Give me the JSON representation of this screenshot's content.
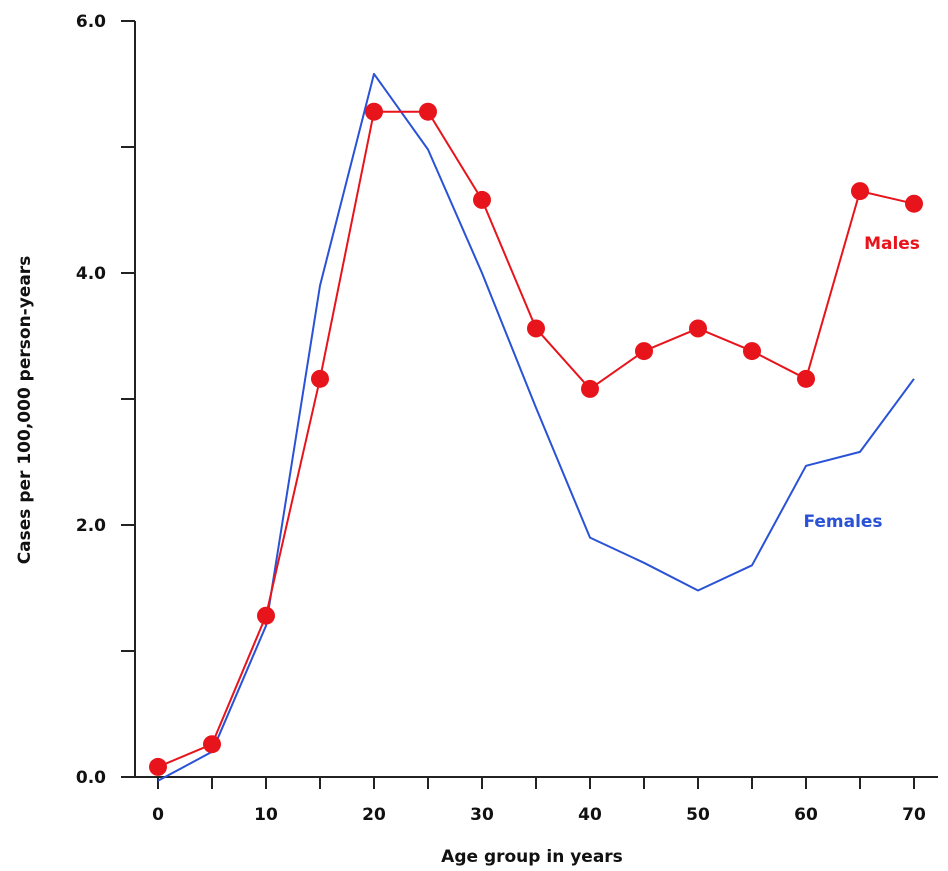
{
  "chart_data": {
    "type": "line",
    "xlabel": "Age group in years",
    "ylabel": "Cases per 100,000 person-years",
    "xlim": [
      0,
      70
    ],
    "ylim": [
      0,
      6
    ],
    "x_ticks": [
      0,
      5,
      10,
      15,
      20,
      25,
      30,
      35,
      40,
      45,
      50,
      55,
      60,
      65,
      70
    ],
    "x_tick_labels": [
      "0",
      "",
      "10",
      "",
      "20",
      "",
      "30",
      "",
      "40",
      "",
      "50",
      "",
      "60",
      "",
      "70"
    ],
    "y_ticks": [
      0,
      1,
      2,
      3,
      4,
      5,
      6
    ],
    "y_tick_labels": [
      "0.0",
      "",
      "2.0",
      "",
      "4.0",
      "",
      "6.0"
    ],
    "grid": false,
    "series": [
      {
        "name": "Males",
        "color": "#e8141c",
        "marker": "circle",
        "x": [
          0,
          5,
          10,
          15,
          20,
          25,
          30,
          35,
          40,
          45,
          50,
          55,
          60,
          65,
          70
        ],
        "values": [
          0.08,
          0.26,
          1.28,
          3.16,
          5.28,
          5.28,
          4.58,
          3.56,
          3.08,
          3.38,
          3.56,
          3.38,
          3.16,
          4.65,
          4.55
        ]
      },
      {
        "name": "Females",
        "color": "#2a52d6",
        "marker": "none",
        "x": [
          0,
          5,
          10,
          15,
          20,
          25,
          30,
          35,
          40,
          45,
          50,
          55,
          60,
          65,
          70
        ],
        "values": [
          -0.03,
          0.2,
          1.2,
          3.9,
          5.58,
          4.98,
          4.0,
          2.93,
          1.9,
          1.7,
          1.48,
          1.68,
          2.47,
          2.58,
          3.16
        ]
      }
    ]
  }
}
